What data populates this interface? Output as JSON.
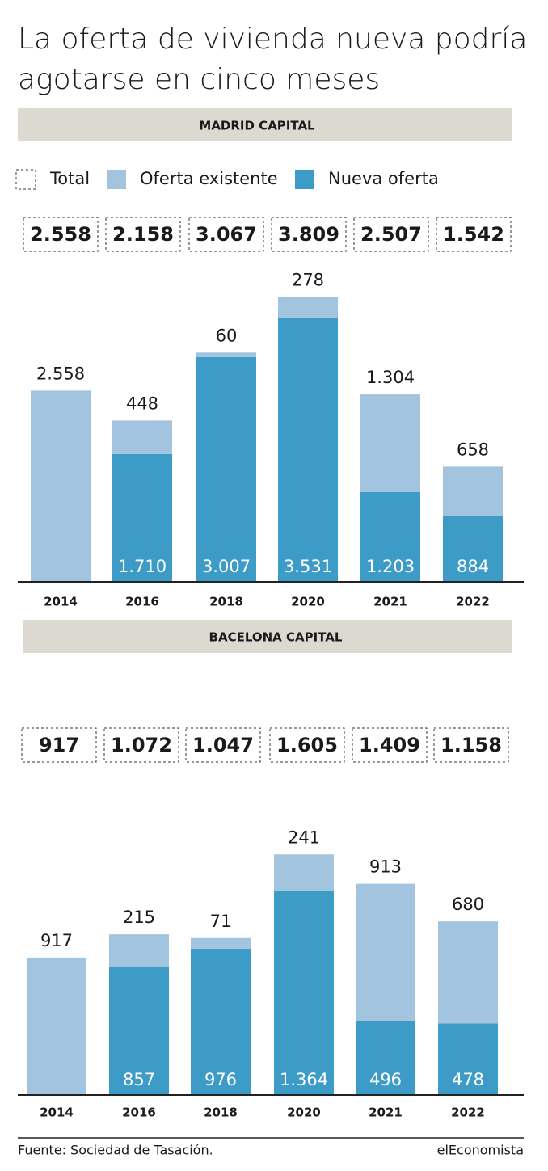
{
  "title": "La oferta de vivienda nueva podría agotarse en cinco meses",
  "source": "Fuente: Sociedad de Tasación.",
  "brand": "elEconomista",
  "chart_data": [
    {
      "type": "bar",
      "stacked": true,
      "subtitle": "MADRID CAPITAL",
      "categories": [
        "2014",
        "2016",
        "2018",
        "2020",
        "2021",
        "2022"
      ],
      "ylim": [
        0,
        4000
      ],
      "totals": {
        "name": "Total",
        "values": [
          2558,
          2158,
          3067,
          3809,
          2507,
          1542
        ],
        "value_labels": [
          "2.558",
          "2.158",
          "3.067",
          "3.809",
          "2.507",
          "1.542"
        ]
      },
      "series": [
        {
          "name": "Oferta existente",
          "color": "#a3c4de",
          "values": [
            2558,
            448,
            60,
            278,
            1304,
            658
          ],
          "value_labels": [
            "2.558",
            "448",
            "60",
            "278",
            "1.304",
            "658"
          ]
        },
        {
          "name": "Nueva oferta",
          "color": "#3d9bc8",
          "values": [
            null,
            1710,
            3007,
            3531,
            1203,
            884
          ],
          "value_labels": [
            null,
            "1.710",
            "3.007",
            "3.531",
            "1.203",
            "884"
          ]
        }
      ]
    },
    {
      "type": "bar",
      "stacked": true,
      "subtitle": "BACELONA CAPITAL",
      "categories": [
        "2014",
        "2016",
        "2018",
        "2020",
        "2021",
        "2022"
      ],
      "ylim": [
        0,
        2000
      ],
      "totals": {
        "name": "Total",
        "values": [
          917,
          1072,
          1047,
          1605,
          1409,
          1158
        ],
        "value_labels": [
          "917",
          "1.072",
          "1.047",
          "1.605",
          "1.409",
          "1.158"
        ]
      },
      "series": [
        {
          "name": "Oferta existente",
          "color": "#a3c4de",
          "values": [
            917,
            215,
            71,
            241,
            913,
            680
          ],
          "value_labels": [
            "917",
            "215",
            "71",
            "241",
            "913",
            "680"
          ]
        },
        {
          "name": "Nueva oferta",
          "color": "#3d9bc8",
          "values": [
            null,
            857,
            976,
            1364,
            496,
            478
          ],
          "value_labels": [
            null,
            "857",
            "976",
            "1.364",
            "496",
            "478"
          ]
        }
      ]
    }
  ]
}
